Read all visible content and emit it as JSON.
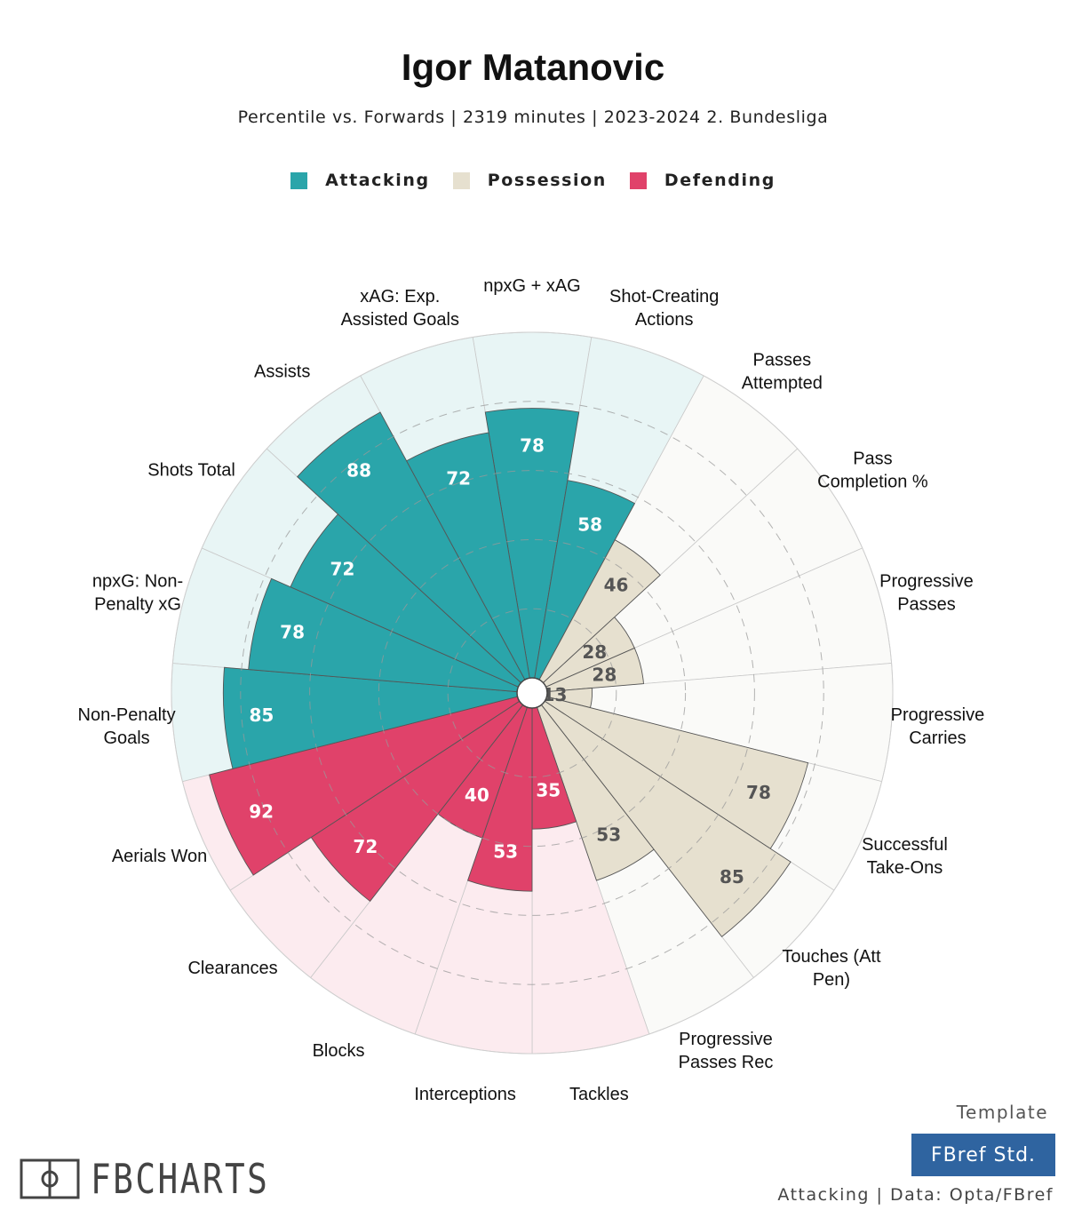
{
  "header": {
    "title": "Igor Matanovic",
    "subtitle": "Percentile vs. Forwards | 2319 minutes | 2023-2024 2. Bundesliga"
  },
  "legend": [
    {
      "label": "Attacking",
      "color": "#2aa5aa"
    },
    {
      "label": "Possession",
      "color": "#e6e0cf"
    },
    {
      "label": "Defending",
      "color": "#e0426a"
    }
  ],
  "chart_data": {
    "type": "radial-bar",
    "range": [
      0,
      100
    ],
    "grid": true,
    "legend_position": "top-center",
    "categories": [
      {
        "label": [
          "npxG + xAG"
        ],
        "value": 78,
        "group": "Attacking"
      },
      {
        "label": [
          "Shot-Creating",
          "Actions"
        ],
        "value": 58,
        "group": "Attacking"
      },
      {
        "label": [
          "Passes",
          "Attempted"
        ],
        "value": 46,
        "group": "Possession"
      },
      {
        "label": [
          "Pass",
          "Completion %"
        ],
        "value": 28,
        "group": "Possession"
      },
      {
        "label": [
          "Progressive",
          "Passes"
        ],
        "value": 28,
        "group": "Possession"
      },
      {
        "label": [
          "Progressive",
          "Carries"
        ],
        "value": 13,
        "group": "Possession"
      },
      {
        "label": [
          "Successful",
          "Take-Ons"
        ],
        "value": 78,
        "group": "Possession"
      },
      {
        "label": [
          "Touches (Att",
          "Pen)"
        ],
        "value": 85,
        "group": "Possession"
      },
      {
        "label": [
          "Progressive",
          "Passes Rec"
        ],
        "value": 53,
        "group": "Possession"
      },
      {
        "label": [
          "Tackles"
        ],
        "value": 35,
        "group": "Defending"
      },
      {
        "label": [
          "Interceptions"
        ],
        "value": 53,
        "group": "Defending"
      },
      {
        "label": [
          "Blocks"
        ],
        "value": 40,
        "group": "Defending"
      },
      {
        "label": [
          "Clearances"
        ],
        "value": 72,
        "group": "Defending"
      },
      {
        "label": [
          "Aerials Won"
        ],
        "value": 92,
        "group": "Defending"
      },
      {
        "label": [
          "Non-Penalty",
          "Goals"
        ],
        "value": 85,
        "group": "Attacking"
      },
      {
        "label": [
          "npxG: Non-",
          "Penalty xG"
        ],
        "value": 78,
        "group": "Attacking"
      },
      {
        "label": [
          "Shots Total"
        ],
        "value": 72,
        "group": "Attacking"
      },
      {
        "label": [
          "Assists"
        ],
        "value": 88,
        "group": "Attacking"
      },
      {
        "label": [
          "xAG: Exp.",
          "Assisted Goals"
        ],
        "value": 72,
        "group": "Attacking"
      }
    ],
    "group_colors": {
      "Attacking": {
        "bar": "#2aa5aa",
        "bg": "#e8f5f5",
        "text": "#ffffff"
      },
      "Possession": {
        "bar": "#e6e0cf",
        "bg": "#fafaf8",
        "text": "#555555"
      },
      "Defending": {
        "bar": "#e0426a",
        "bg": "#fcebef",
        "text": "#ffffff"
      }
    }
  },
  "branding": {
    "logo_text": "FBCHARTS",
    "template_label": "Template",
    "template_name": "FBref Std.",
    "footer": "Attacking | Data: Opta/FBref"
  }
}
